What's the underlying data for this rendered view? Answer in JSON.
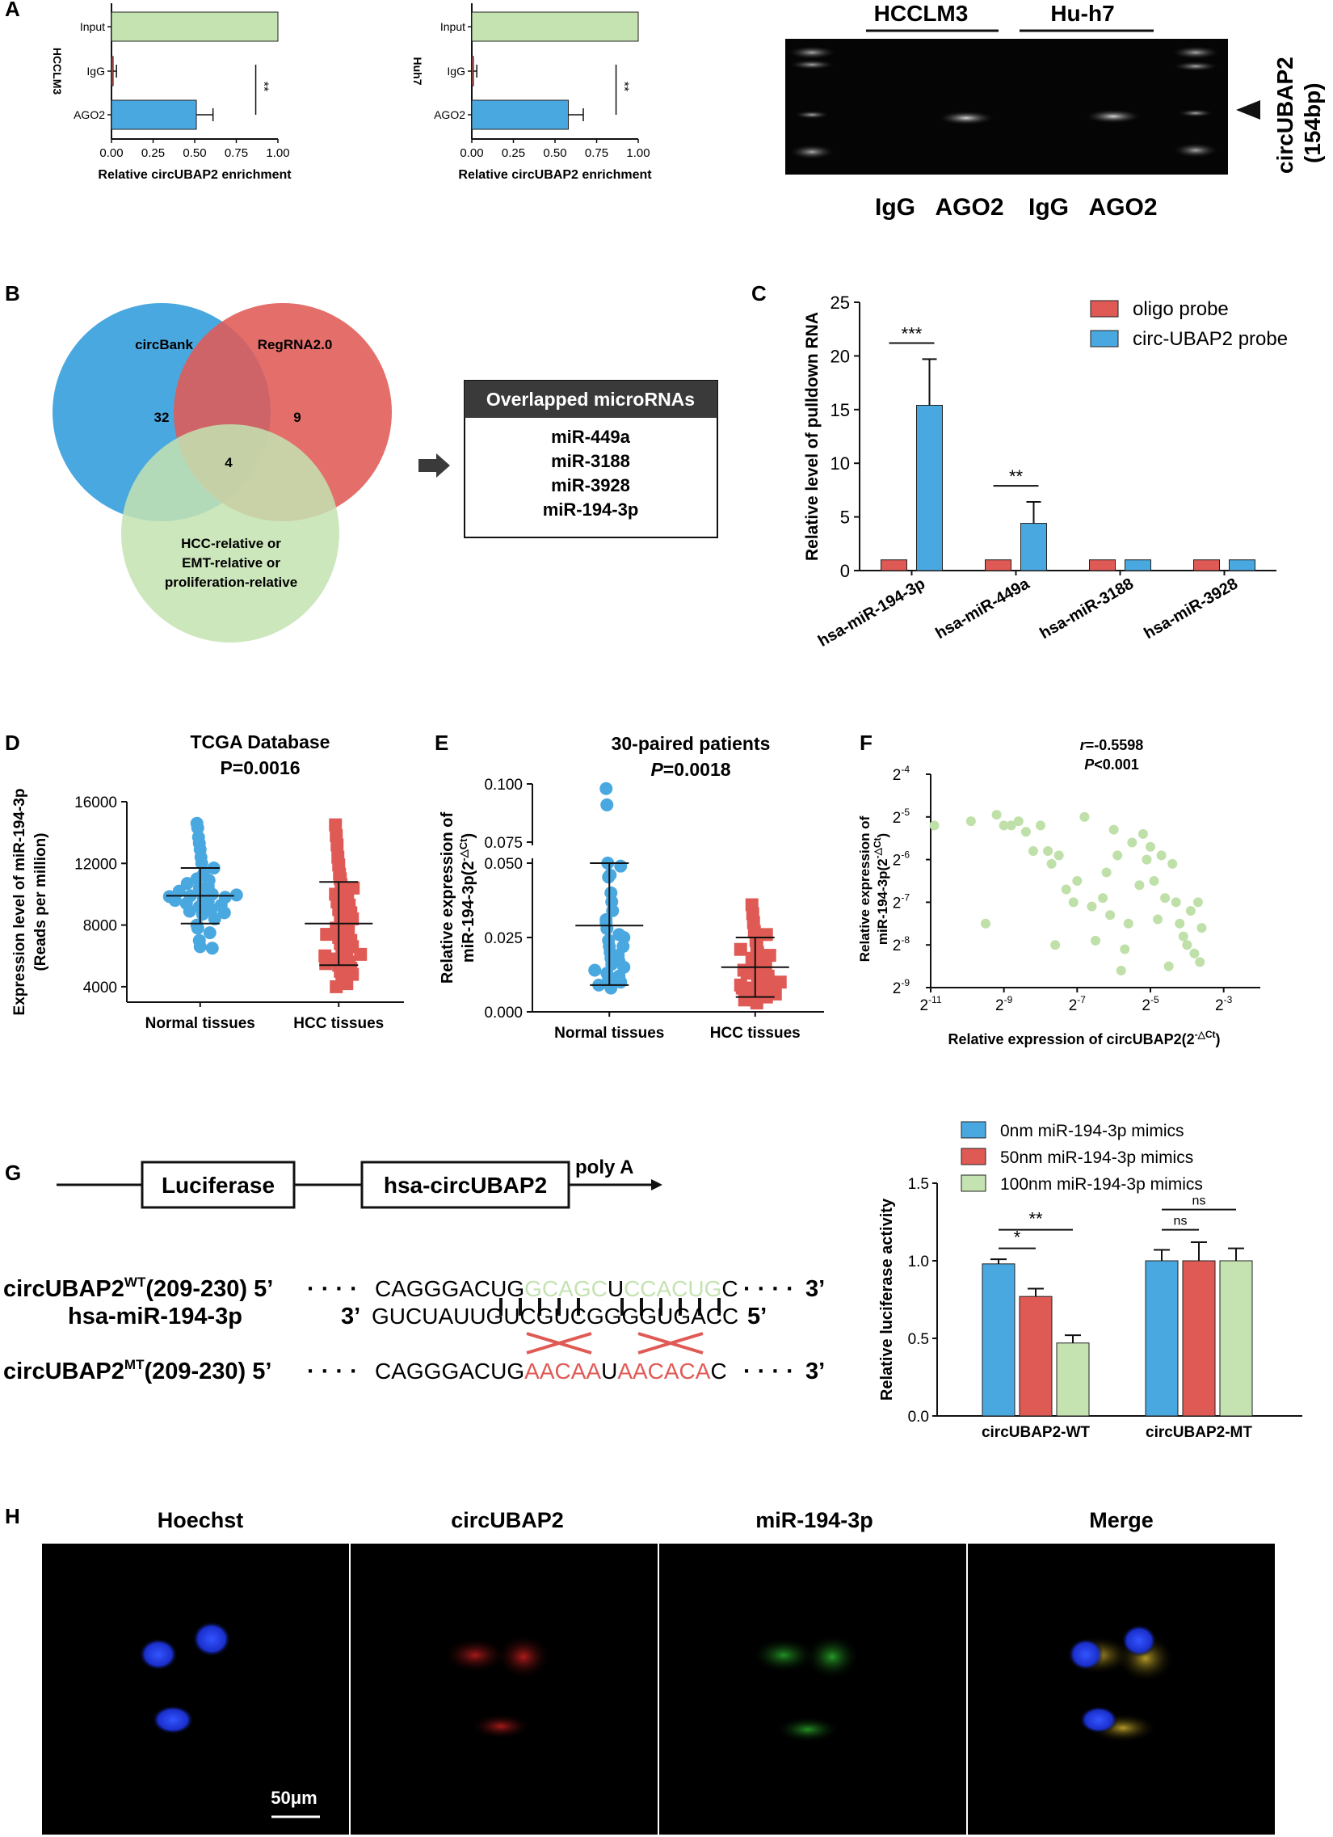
{
  "panel_labels": {
    "A": "A",
    "B": "B",
    "C": "C",
    "D": "D",
    "E": "E",
    "F": "F",
    "G": "G",
    "H": "H"
  },
  "colors": {
    "blue": "#4aa8e0",
    "red": "#e05a55",
    "green": "#c4e3b1",
    "green_dot": "#bfe0a8",
    "dark_gray": "#3a3a3a"
  },
  "chart_data": [
    {
      "id": "A1",
      "type": "bar",
      "orientation": "horizontal",
      "categories": [
        "Input",
        "IgG",
        "AGO2"
      ],
      "values": [
        1.0,
        0.01,
        0.51
      ],
      "errors": [
        0,
        0.02,
        0.1
      ],
      "bar_colors": [
        "green",
        "red",
        "blue"
      ],
      "ylabel": "HCCLM3",
      "xlabel": "Relative circUBAP2 enrichment",
      "xlim": [
        0,
        1
      ],
      "xticks": [
        "0.00",
        "0.25",
        "0.50",
        "0.75",
        "1.00"
      ],
      "significance": "**"
    },
    {
      "id": "A2",
      "type": "bar",
      "orientation": "horizontal",
      "categories": [
        "Input",
        "IgG",
        "AGO2"
      ],
      "values": [
        1.0,
        0.01,
        0.58
      ],
      "errors": [
        0,
        0.02,
        0.09
      ],
      "bar_colors": [
        "green",
        "red",
        "blue"
      ],
      "ylabel": "Huh7",
      "xlabel": "Relative circUBAP2 enrichment",
      "xlim": [
        0,
        1
      ],
      "xticks": [
        "0.00",
        "0.25",
        "0.50",
        "0.75",
        "1.00"
      ],
      "significance": "**"
    },
    {
      "id": "C",
      "type": "bar",
      "categories": [
        "hsa-miR-194-3p",
        "hsa-miR-449a",
        "hsa-miR-3188",
        "hsa-miR-3928"
      ],
      "series": [
        {
          "name": "oligo probe",
          "values": [
            1,
            1,
            1,
            1
          ],
          "errors": [
            0,
            0,
            0,
            0
          ],
          "color": "red"
        },
        {
          "name": "circ-UBAP2 probe",
          "values": [
            15.4,
            4.4,
            1,
            1
          ],
          "errors": [
            4.3,
            2.0,
            0,
            0
          ],
          "color": "blue"
        }
      ],
      "ylabel": "Relative level of pulldown RNA",
      "ylim": [
        0,
        25
      ],
      "yticks": [
        "0",
        "5",
        "10",
        "15",
        "20",
        "25"
      ],
      "significance": [
        "***",
        "**"
      ]
    },
    {
      "id": "D",
      "type": "scatter",
      "title": "TCGA Database",
      "subtitle": "P=0.0016",
      "ylabel": "Expression level of miR-194-3p",
      "ylabel2": "(Reads per million)",
      "ylim": [
        3000,
        16000
      ],
      "yticks": [
        "4000",
        "8000",
        "12000",
        "16000"
      ],
      "groups": [
        {
          "name": "Normal tissues",
          "color": "blue",
          "mean": 9900,
          "sd_low": 8100,
          "sd_high": 11700,
          "values": [
            14600,
            14300,
            13700,
            13300,
            12900,
            12400,
            12000,
            11700,
            11300,
            11000,
            10900,
            10700,
            10400,
            10200,
            10000,
            9900,
            9800,
            9700,
            9500,
            9400,
            9300,
            9200,
            9000,
            8900,
            8800,
            8700,
            8400,
            8000,
            7800,
            7500,
            7000,
            6600,
            6500,
            10200,
            9950,
            9850,
            10500,
            9600
          ]
        },
        {
          "name": "HCC tissues",
          "color": "red",
          "mean": 8100,
          "sd_low": 5400,
          "sd_high": 10800,
          "values": [
            14500,
            13800,
            13200,
            12400,
            11900,
            11300,
            11000,
            10600,
            10400,
            10000,
            9800,
            9500,
            9300,
            9000,
            8800,
            8600,
            8400,
            8200,
            8000,
            7800,
            7600,
            7400,
            7200,
            7000,
            6800,
            6600,
            6400,
            6200,
            6000,
            5800,
            5600,
            5400,
            5200,
            5000,
            4800,
            4500,
            4200,
            4000,
            5500,
            6100
          ]
        }
      ]
    },
    {
      "id": "E",
      "type": "scatter",
      "title": "30-paired patients",
      "subtitle_italic": "P",
      "subtitle": "=0.0018",
      "ylabel": "Relative expression of",
      "ylabel2": "miR-194-3p(2",
      "ylabel_sup": "-△Ct",
      "ylabel_end": ")",
      "yticks_lower": [
        "0.000",
        "0.025",
        "0.050"
      ],
      "yticks_upper": [
        "0.075",
        "0.100"
      ],
      "groups": [
        {
          "name": "Normal tissues",
          "color": "blue",
          "mean": 0.029,
          "sd_low": 0.009,
          "sd_high": 0.05,
          "values": [
            0.098,
            0.091,
            0.066,
            0.06,
            0.049,
            0.046,
            0.04,
            0.037,
            0.034,
            0.03,
            0.028,
            0.026,
            0.024,
            0.022,
            0.02,
            0.018,
            0.016,
            0.015,
            0.014,
            0.013,
            0.012,
            0.011,
            0.01,
            0.009,
            0.008,
            0.022,
            0.025,
            0.031,
            0.019,
            0.017
          ]
        },
        {
          "name": "HCC tissues",
          "color": "red",
          "mean": 0.015,
          "sd_low": 0.005,
          "sd_high": 0.025,
          "values": [
            0.036,
            0.033,
            0.03,
            0.027,
            0.026,
            0.024,
            0.022,
            0.02,
            0.019,
            0.018,
            0.017,
            0.016,
            0.015,
            0.014,
            0.013,
            0.012,
            0.011,
            0.01,
            0.009,
            0.008,
            0.007,
            0.006,
            0.005,
            0.004,
            0.003,
            0.01,
            0.013,
            0.021,
            0.006,
            0.008
          ]
        }
      ]
    },
    {
      "id": "F",
      "type": "scatter",
      "r_label": "r",
      "r_value": "=-0.5598",
      "p_label": "P",
      "p_value": "<0.001",
      "xlabel": "Relative expression of circUBAP2(2",
      "xlabel_sup": "-△Ct",
      "xlabel_end": ")",
      "ylabel": "Relative expression of",
      "ylabel2": "miR-194-3p(2",
      "ylabel_sup": "-△Ct",
      "ylabel_end": ")",
      "xticks": [
        {
          "base": "2",
          "exp": "-11"
        },
        {
          "base": "2",
          "exp": "-9"
        },
        {
          "base": "2",
          "exp": "-7"
        },
        {
          "base": "2",
          "exp": "-5"
        },
        {
          "base": "2",
          "exp": "-3"
        }
      ],
      "yticks": [
        {
          "base": "2",
          "exp": "-4"
        },
        {
          "base": "2",
          "exp": "-5"
        },
        {
          "base": "2",
          "exp": "-6"
        },
        {
          "base": "2",
          "exp": "-7"
        },
        {
          "base": "2",
          "exp": "-8"
        },
        {
          "base": "2",
          "exp": "-9"
        }
      ],
      "xlim": [
        -11,
        -2
      ],
      "ylim": [
        -9,
        -4
      ],
      "points": [
        [
          -10.9,
          -5.2
        ],
        [
          -9.9,
          -5.1
        ],
        [
          -9.2,
          -4.95
        ],
        [
          -9.0,
          -5.2
        ],
        [
          -8.8,
          -5.2
        ],
        [
          -8.6,
          -5.1
        ],
        [
          -8.4,
          -5.35
        ],
        [
          -8.2,
          -5.8
        ],
        [
          -8.0,
          -5.2
        ],
        [
          -7.8,
          -5.8
        ],
        [
          -7.7,
          -6.1
        ],
        [
          -7.5,
          -5.9
        ],
        [
          -7.3,
          -6.7
        ],
        [
          -7.1,
          -7.0
        ],
        [
          -7.0,
          -6.5
        ],
        [
          -6.8,
          -5.0
        ],
        [
          -6.6,
          -7.1
        ],
        [
          -6.5,
          -7.9
        ],
        [
          -6.3,
          -6.9
        ],
        [
          -6.2,
          -6.3
        ],
        [
          -6.0,
          -5.3
        ],
        [
          -5.9,
          -5.9
        ],
        [
          -5.8,
          -8.6
        ],
        [
          -5.7,
          -8.1
        ],
        [
          -5.6,
          -7.5
        ],
        [
          -5.5,
          -5.6
        ],
        [
          -5.3,
          -6.6
        ],
        [
          -5.2,
          -5.4
        ],
        [
          -5.1,
          -6.0
        ],
        [
          -5.0,
          -5.7
        ],
        [
          -4.9,
          -6.5
        ],
        [
          -4.8,
          -7.4
        ],
        [
          -4.7,
          -5.9
        ],
        [
          -4.6,
          -6.9
        ],
        [
          -4.5,
          -8.5
        ],
        [
          -4.4,
          -6.1
        ],
        [
          -4.3,
          -7.0
        ],
        [
          -4.2,
          -7.5
        ],
        [
          -4.1,
          -7.8
        ],
        [
          -4.0,
          -8.0
        ],
        [
          -3.9,
          -7.2
        ],
        [
          -3.8,
          -8.2
        ],
        [
          -3.7,
          -7.0
        ],
        [
          -3.65,
          -8.4
        ],
        [
          -3.6,
          -7.6
        ],
        [
          -7.6,
          -8.0
        ],
        [
          -9.5,
          -7.5
        ],
        [
          -6.1,
          -7.3
        ]
      ]
    },
    {
      "id": "G",
      "type": "bar",
      "categories": [
        "circUBAP2-WT",
        "circUBAP2-MT"
      ],
      "series": [
        {
          "name": "0nm miR-194-3p mimics",
          "values": [
            0.98,
            1.0
          ],
          "errors": [
            0.03,
            0.07
          ],
          "color": "blue"
        },
        {
          "name": "50nm miR-194-3p mimics",
          "values": [
            0.77,
            1.0
          ],
          "errors": [
            0.05,
            0.12
          ],
          "color": "red"
        },
        {
          "name": "100nm miR-194-3p mimics",
          "values": [
            0.47,
            1.0
          ],
          "errors": [
            0.05,
            0.08
          ],
          "color": "green"
        }
      ],
      "ylabel": "Relative luciferase activity",
      "ylim": [
        0,
        1.5
      ],
      "yticks": [
        "0.0",
        "0.5",
        "1.0",
        "1.5"
      ],
      "significance": [
        "*",
        "**",
        "ns",
        "ns"
      ]
    }
  ],
  "gel": {
    "group1": "HCCLM3",
    "group2": "Hu-h7",
    "lanes": [
      "IgG",
      "AGO2",
      "IgG",
      "AGO2"
    ],
    "product": "circUBAP2",
    "product_size": "(154bp)"
  },
  "venn": {
    "set1": "circBank",
    "set2": "RegRNA2.0",
    "set3_lines": [
      "HCC-relative or",
      "EMT-relative or",
      "proliferation-relative"
    ],
    "count_a": "32",
    "count_b": "9",
    "count_c": "4",
    "box_title": "Overlapped microRNAs",
    "box_items": [
      "miR-449a",
      "miR-3188",
      "miR-3928",
      "miR-194-3p"
    ]
  },
  "construct": {
    "luciferase": "Luciferase",
    "circ": "hsa-circUBAP2",
    "polya": "poly A",
    "wt_label": "circUBAP2",
    "wt_sup": "WT",
    "wt_range": "(209-230) 5’",
    "mir_label": "hsa-miR-194-3p",
    "mt_label": "circUBAP2",
    "mt_sup": "MT",
    "mt_range": "(209-230) 5’",
    "dots": "· · · ·",
    "wt_seq_a": "CAGGGACUG",
    "wt_seq_b": "GCAGC",
    "wt_seq_c": "U",
    "wt_seq_d": "CCACUG",
    "wt_seq_e": "C",
    "mir_5": "3’",
    "mir_seq": "GUCUAUUGUCGUCGGGGUGACC",
    "mir_end": "5’",
    "mt_seq_a": "CAGGGACUG",
    "mt_seq_b": "AACAA",
    "mt_seq_c": "U",
    "mt_seq_d": "AACACA",
    "mt_seq_e": "C",
    "end3": "3’",
    "pairing": "|||||  ||||||"
  },
  "micro": {
    "panels": [
      "Hoechst",
      "circUBAP2",
      "miR-194-3p",
      "Merge"
    ],
    "scale": "50μm"
  }
}
